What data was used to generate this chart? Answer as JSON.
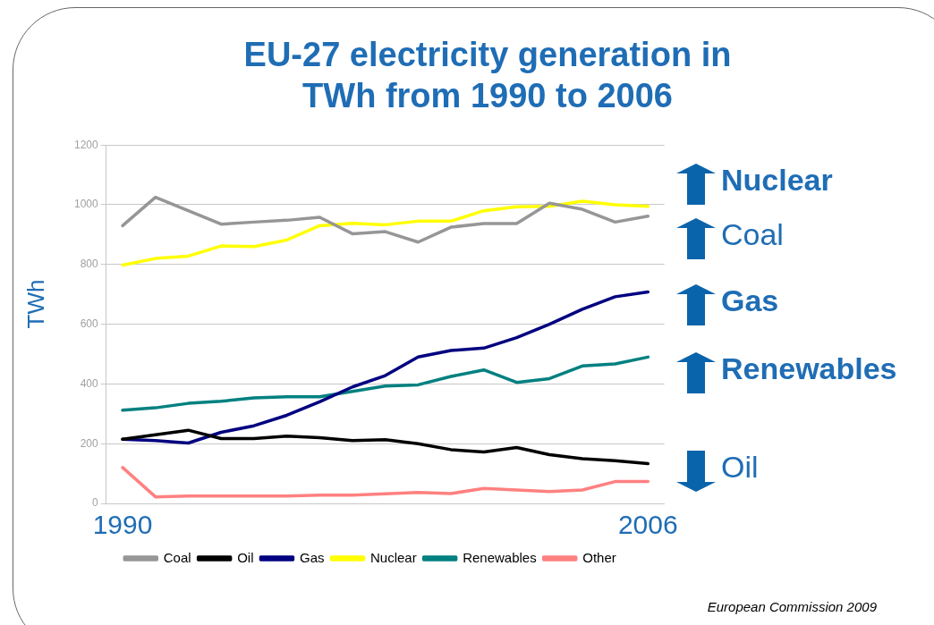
{
  "chart_data": {
    "type": "line",
    "title": "EU-27 electricity generation in TWh from 1990 to 2006",
    "ylabel": "TWh",
    "categories": [
      "1990",
      null,
      null,
      null,
      null,
      null,
      null,
      null,
      null,
      null,
      null,
      null,
      null,
      null,
      null,
      null,
      "2006"
    ],
    "series": [
      {
        "name": "Coal",
        "color": "#969696",
        "values": [
          930,
          1025,
          980,
          935,
          942,
          948,
          958,
          903,
          910,
          875,
          925,
          937,
          937,
          1005,
          985,
          942,
          962
        ]
      },
      {
        "name": "Oil",
        "color": "#000000",
        "values": [
          215,
          230,
          245,
          217,
          217,
          225,
          220,
          210,
          213,
          200,
          180,
          172,
          187,
          163,
          150,
          143,
          133
        ]
      },
      {
        "name": "Gas",
        "color": "#000080",
        "values": [
          215,
          210,
          202,
          238,
          260,
          295,
          340,
          390,
          428,
          490,
          512,
          520,
          555,
          600,
          650,
          692,
          708
        ]
      },
      {
        "name": "Nuclear",
        "color": "#ffff00",
        "values": [
          798,
          820,
          828,
          862,
          860,
          882,
          930,
          938,
          933,
          945,
          945,
          980,
          993,
          995,
          1012,
          1000,
          995
        ]
      },
      {
        "name": "Renewables",
        "color": "#008080",
        "values": [
          312,
          320,
          335,
          342,
          353,
          357,
          357,
          375,
          393,
          397,
          425,
          447,
          405,
          418,
          460,
          467,
          490
        ]
      },
      {
        "name": "Other",
        "color": "#ff8080",
        "values": [
          120,
          22,
          25,
          25,
          25,
          25,
          28,
          28,
          32,
          37,
          33,
          50,
          45,
          40,
          45,
          73,
          73
        ]
      }
    ],
    "ylim": [
      0,
      1200
    ],
    "yticks": [
      0,
      200,
      400,
      600,
      800,
      1000,
      1200
    ],
    "grid": "y",
    "legend": "bottom",
    "marker": "none",
    "line_style": "solid",
    "annotations": [
      "Nuclear",
      "Coal",
      "Gas",
      "Renewables",
      "Oil",
      "European Commission 2009"
    ]
  }
}
